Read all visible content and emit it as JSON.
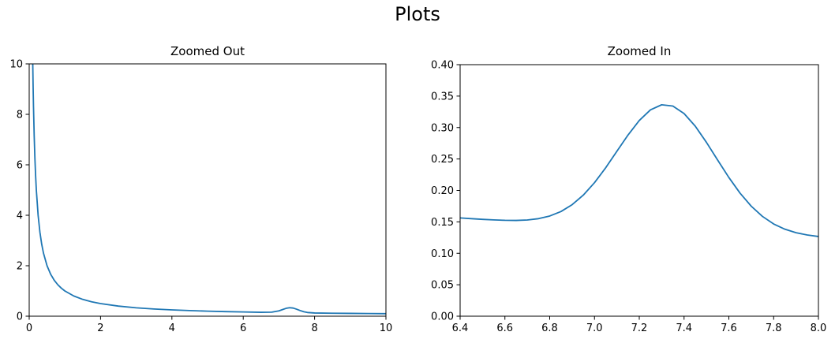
{
  "figure": {
    "title": "Plots",
    "background": "#ffffff",
    "line_color": "#1f77b4",
    "spine_color": "#000000",
    "tick_color": "#000000"
  },
  "chart_data": [
    {
      "type": "line",
      "title": "Zoomed Out",
      "xlabel": "",
      "ylabel": "",
      "xlim": [
        0,
        10
      ],
      "ylim": [
        0,
        10
      ],
      "grid": false,
      "legend": null,
      "xticks": [
        0,
        2,
        4,
        6,
        8,
        10
      ],
      "xtick_labels": [
        "0",
        "2",
        "4",
        "6",
        "8",
        "10"
      ],
      "yticks": [
        0,
        2,
        4,
        6,
        8,
        10
      ],
      "ytick_labels": [
        "0",
        "2",
        "4",
        "6",
        "8",
        "10"
      ],
      "x": [
        0.1,
        0.11,
        0.12,
        0.14,
        0.16,
        0.18,
        0.2,
        0.25,
        0.3,
        0.35,
        0.4,
        0.5,
        0.6,
        0.7,
        0.8,
        0.9,
        1.0,
        1.25,
        1.5,
        1.75,
        2.0,
        2.5,
        3.0,
        3.5,
        4.0,
        4.5,
        5.0,
        5.5,
        6.0,
        6.5,
        6.8,
        7.0,
        7.1,
        7.2,
        7.3,
        7.4,
        7.5,
        7.6,
        7.7,
        7.8,
        8.0,
        8.5,
        9.0,
        9.5,
        10.0
      ],
      "y": [
        10.0,
        9.091,
        8.333,
        7.143,
        6.25,
        5.556,
        5.0,
        4.0,
        3.333,
        2.857,
        2.5,
        2.0,
        1.667,
        1.429,
        1.25,
        1.111,
        1.0,
        0.8,
        0.667,
        0.571,
        0.5,
        0.4,
        0.333,
        0.286,
        0.25,
        0.222,
        0.2,
        0.182,
        0.167,
        0.154,
        0.159,
        0.212,
        0.262,
        0.311,
        0.336,
        0.322,
        0.276,
        0.221,
        0.175,
        0.147,
        0.127,
        0.118,
        0.111,
        0.105,
        0.1
      ]
    },
    {
      "type": "line",
      "title": "Zoomed In",
      "xlabel": "",
      "ylabel": "",
      "xlim": [
        6.4,
        8.0
      ],
      "ylim": [
        0.0,
        0.4
      ],
      "grid": false,
      "legend": null,
      "xticks": [
        6.4,
        6.6,
        6.8,
        7.0,
        7.2,
        7.4,
        7.6,
        7.8,
        8.0
      ],
      "xtick_labels": [
        "6.4",
        "6.6",
        "6.8",
        "7.0",
        "7.2",
        "7.4",
        "7.6",
        "7.8",
        "8.0"
      ],
      "yticks": [
        0.0,
        0.05,
        0.1,
        0.15,
        0.2,
        0.25,
        0.3,
        0.35,
        0.4
      ],
      "ytick_labels": [
        "0.00",
        "0.05",
        "0.10",
        "0.15",
        "0.20",
        "0.25",
        "0.30",
        "0.35",
        "0.40"
      ],
      "x": [
        6.4,
        6.45,
        6.5,
        6.55,
        6.6,
        6.65,
        6.7,
        6.75,
        6.8,
        6.85,
        6.9,
        6.95,
        7.0,
        7.05,
        7.1,
        7.15,
        7.2,
        7.25,
        7.3,
        7.35,
        7.4,
        7.45,
        7.5,
        7.55,
        7.6,
        7.65,
        7.7,
        7.75,
        7.8,
        7.85,
        7.9,
        7.95,
        8.0
      ],
      "y": [
        0.1563,
        0.1551,
        0.154,
        0.1531,
        0.1525,
        0.1523,
        0.153,
        0.1551,
        0.1593,
        0.1664,
        0.1773,
        0.1925,
        0.2123,
        0.236,
        0.2622,
        0.2882,
        0.3112,
        0.3281,
        0.3362,
        0.3342,
        0.3223,
        0.3022,
        0.2764,
        0.2483,
        0.2206,
        0.1957,
        0.1749,
        0.1587,
        0.1467,
        0.1384,
        0.1328,
        0.1291,
        0.1267
      ]
    }
  ]
}
